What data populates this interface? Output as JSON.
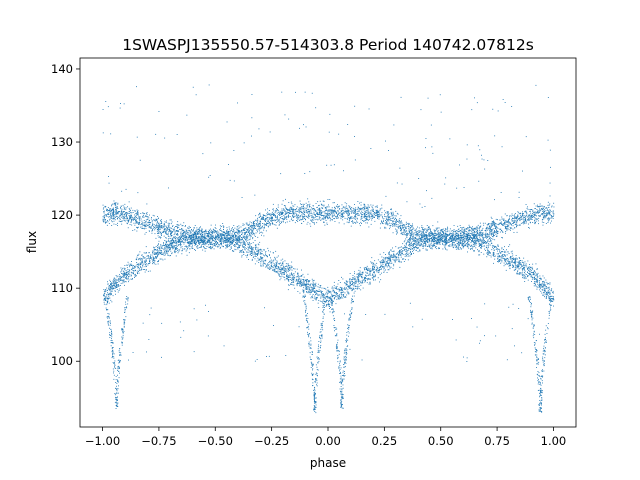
{
  "chart_data": {
    "type": "scatter",
    "title": "1SWASPJ135550.57-514303.8 Period 140742.07812s",
    "xlabel": "phase",
    "ylabel": "flux",
    "xlim": [
      -1.1,
      1.1
    ],
    "ylim": [
      91,
      141.5
    ],
    "xticks": [
      -1.0,
      -0.75,
      -0.5,
      -0.25,
      0.0,
      0.25,
      0.5,
      0.75,
      1.0
    ],
    "xtick_labels": [
      "−1.00",
      "−0.75",
      "−0.50",
      "−0.25",
      "0.00",
      "0.25",
      "0.50",
      "0.75",
      "1.00"
    ],
    "yticks": [
      100,
      110,
      120,
      130,
      140
    ],
    "ytick_labels": [
      "100",
      "110",
      "120",
      "130",
      "140"
    ],
    "grid": false,
    "legend": "none",
    "marker_color": "#1f77b4",
    "series": [
      {
        "x": [
          -1.0,
          -0.95,
          -0.9,
          -0.85,
          -0.8,
          -0.75,
          -0.7,
          -0.65,
          -0.6,
          -0.55,
          -0.5,
          -0.45,
          -0.4,
          -0.35,
          -0.3,
          -0.25,
          -0.2,
          -0.15,
          -0.1,
          -0.05,
          0.0,
          0.05,
          0.1,
          0.15,
          0.2,
          0.25,
          0.3,
          0.35,
          0.4,
          0.45,
          0.5,
          0.55,
          0.6,
          0.65,
          0.7,
          0.75,
          0.8,
          0.85,
          0.9,
          0.95,
          1.0
        ],
        "y_upper": [
          120.2,
          120.3,
          120.0,
          119.5,
          119.0,
          118.3,
          117.8,
          117.5,
          117.2,
          117.0,
          117.0,
          117.0,
          117.3,
          118.0,
          119.0,
          119.8,
          120.2,
          120.4,
          120.4,
          120.4,
          120.3,
          120.4,
          120.3,
          120.3,
          120.2,
          119.8,
          119.0,
          118.0,
          117.3,
          117.0,
          117.0,
          117.0,
          117.2,
          117.5,
          117.8,
          118.3,
          119.0,
          119.5,
          120.0,
          120.3,
          120.2
        ],
        "y_lower": [
          108.5,
          110.5,
          112.0,
          113.0,
          114.0,
          115.0,
          115.8,
          116.3,
          116.6,
          116.9,
          117.0,
          116.9,
          116.3,
          115.5,
          114.5,
          113.5,
          112.5,
          111.5,
          110.5,
          109.5,
          108.5,
          109.5,
          110.5,
          111.5,
          112.5,
          113.5,
          114.5,
          115.5,
          116.3,
          116.9,
          117.0,
          116.9,
          116.6,
          116.3,
          115.8,
          115.0,
          114.0,
          113.0,
          112.0,
          110.5,
          108.5
        ]
      }
    ],
    "eclipse_minima": [
      {
        "phase": -0.94,
        "flux_min": 93.5
      },
      {
        "phase": -0.06,
        "flux_min": 93.0
      },
      {
        "phase": 0.06,
        "flux_min": 93.5
      },
      {
        "phase": 0.94,
        "flux_min": 93.0
      }
    ]
  }
}
